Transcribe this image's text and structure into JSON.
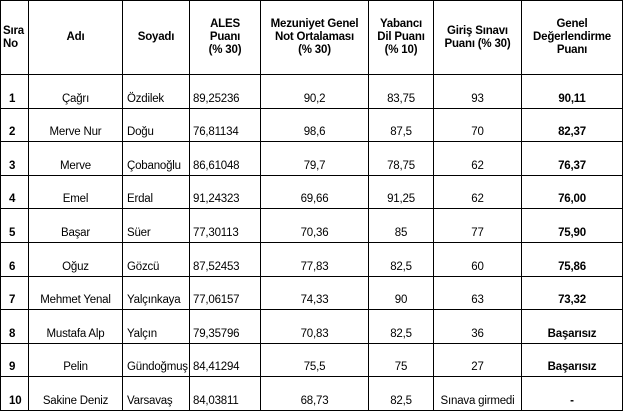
{
  "table": {
    "headers": [
      [
        "Sıra",
        "No"
      ],
      [
        "Adı"
      ],
      [
        "Soyadı"
      ],
      [
        "ALES",
        "Puanı",
        "(% 30)"
      ],
      [
        "Mezuniyet Genel",
        "Not Ortalaması",
        "(% 30)"
      ],
      [
        "Yabancı",
        "Dil Puanı",
        "(% 10)"
      ],
      [
        "Giriş Sınavı",
        "Puanı (% 30)"
      ],
      [
        "Genel",
        "Değerlendirme",
        "Puanı"
      ]
    ],
    "rows": [
      {
        "no": "1",
        "first_name": "Çağrı",
        "last_name": "Özdilek",
        "ales": "89,25236",
        "gpa": "90,2",
        "language": "83,75",
        "entrance": "93",
        "overall": "90,11"
      },
      {
        "no": "2",
        "first_name": "Merve Nur",
        "last_name": "Doğu",
        "ales": "76,81134",
        "gpa": "98,6",
        "language": "87,5",
        "entrance": "70",
        "overall": "82,37"
      },
      {
        "no": "3",
        "first_name": "Merve",
        "last_name": "Çobanoğlu",
        "ales": "86,61048",
        "gpa": "79,7",
        "language": "78,75",
        "entrance": "62",
        "overall": "76,37"
      },
      {
        "no": "4",
        "first_name": "Emel",
        "last_name": "Erdal",
        "ales": "91,24323",
        "gpa": "69,66",
        "language": "91,25",
        "entrance": "62",
        "overall": "76,00"
      },
      {
        "no": "5",
        "first_name": "Başar",
        "last_name": "Süer",
        "ales": "77,30113",
        "gpa": "70,36",
        "language": "85",
        "entrance": "77",
        "overall": "75,90"
      },
      {
        "no": "6",
        "first_name": "Oğuz",
        "last_name": "Gözcü",
        "ales": "87,52453",
        "gpa": "77,83",
        "language": "82,5",
        "entrance": "60",
        "overall": "75,86"
      },
      {
        "no": "7",
        "first_name": "Mehmet Yenal",
        "last_name": "Yalçınkaya",
        "ales": "77,06157",
        "gpa": "74,33",
        "language": "90",
        "entrance": "63",
        "overall": "73,32"
      },
      {
        "no": "8",
        "first_name": "Mustafa Alp",
        "last_name": "Yalçın",
        "ales": "79,35796",
        "gpa": "70,83",
        "language": "82,5",
        "entrance": "36",
        "overall": "Başarısız"
      },
      {
        "no": "9",
        "first_name": "Pelin",
        "last_name": "Gündoğmuş",
        "ales": "84,41294",
        "gpa": "75,5",
        "language": "75",
        "entrance": "27",
        "overall": "Başarısız"
      },
      {
        "no": "10",
        "first_name": "Sakine Deniz",
        "last_name": "Varsavaş",
        "ales": "84,03811",
        "gpa": "68,73",
        "language": "82,5",
        "entrance": "Sınava girmedi",
        "overall": "-"
      }
    ]
  }
}
